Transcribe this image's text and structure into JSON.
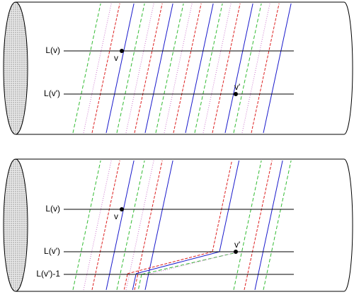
{
  "top": {
    "labels": [
      "L(v)",
      "L(v')"
    ],
    "points": [
      "v",
      "v'"
    ]
  },
  "bottom": {
    "labels": [
      "L(v)",
      "L(v')",
      "L(v')-1"
    ],
    "points": [
      "v",
      "v'"
    ]
  }
}
